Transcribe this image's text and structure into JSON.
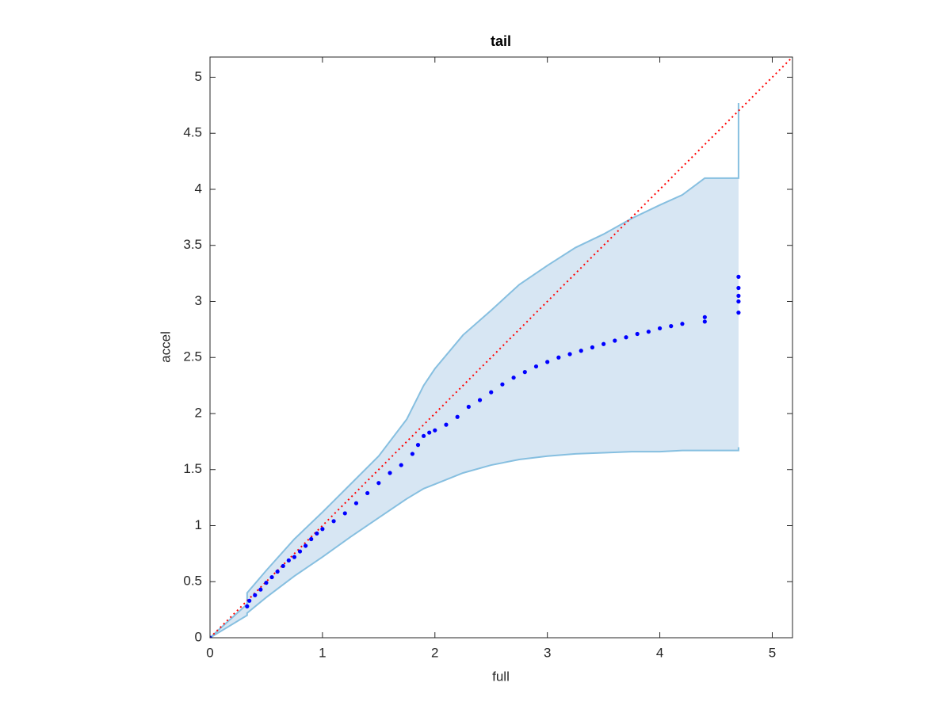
{
  "chart_data": {
    "type": "scatter",
    "title": "tail",
    "x_label": "full",
    "y_label": "accel",
    "xlim": [
      0,
      5.18
    ],
    "ylim": [
      0,
      5.18
    ],
    "xticks": [
      0,
      1,
      2,
      3,
      4,
      5
    ],
    "yticks": [
      0,
      0.5,
      1,
      1.5,
      2,
      2.5,
      3,
      3.5,
      4,
      4.5,
      5
    ],
    "series": [
      {
        "color": "#0000ff",
        "x": [
          0,
          0.33,
          0.35,
          0.4,
          0.45,
          0.5,
          0.55,
          0.6,
          0.65,
          0.7,
          0.75,
          0.8,
          0.85,
          0.9,
          0.95,
          1.0,
          1.1,
          1.2,
          1.3,
          1.4,
          1.5,
          1.6,
          1.7,
          1.8,
          1.85,
          1.9,
          1.95,
          2.0,
          2.1,
          2.2,
          2.3,
          2.4,
          2.5,
          2.6,
          2.7,
          2.8,
          2.9,
          3.0,
          3.1,
          3.2,
          3.3,
          3.4,
          3.5,
          3.6,
          3.7,
          3.8,
          3.9,
          4.0,
          4.1,
          4.2,
          4.4,
          4.4,
          4.7,
          4.7,
          4.7,
          4.7,
          4.7
        ],
        "values": [
          0,
          0.28,
          0.33,
          0.38,
          0.43,
          0.49,
          0.54,
          0.59,
          0.64,
          0.69,
          0.72,
          0.77,
          0.82,
          0.88,
          0.93,
          0.97,
          1.04,
          1.11,
          1.2,
          1.29,
          1.38,
          1.47,
          1.54,
          1.64,
          1.72,
          1.8,
          1.83,
          1.85,
          1.9,
          1.97,
          2.06,
          2.12,
          2.19,
          2.26,
          2.32,
          2.37,
          2.42,
          2.46,
          2.5,
          2.53,
          2.56,
          2.59,
          2.62,
          2.65,
          2.68,
          2.71,
          2.73,
          2.76,
          2.78,
          2.8,
          2.82,
          2.86,
          2.9,
          3.0,
          3.05,
          3.12,
          3.22
        ]
      }
    ],
    "band": {
      "fill": "#d7e6f3",
      "color": "#86bfe0",
      "x": [
        0,
        0.33,
        0.33,
        0.5,
        0.75,
        1.0,
        1.25,
        1.5,
        1.75,
        1.9,
        2.0,
        2.25,
        2.5,
        2.75,
        3.0,
        3.25,
        3.5,
        3.75,
        4.0,
        4.2,
        4.4,
        4.7,
        4.7
      ],
      "upper": [
        0,
        0.3,
        0.4,
        0.6,
        0.88,
        1.12,
        1.37,
        1.62,
        1.95,
        2.25,
        2.4,
        2.7,
        2.92,
        3.15,
        3.32,
        3.48,
        3.6,
        3.74,
        3.86,
        3.95,
        4.1,
        4.1,
        4.77
      ],
      "lower": [
        0,
        0.2,
        0.22,
        0.36,
        0.55,
        0.72,
        0.9,
        1.07,
        1.24,
        1.33,
        1.37,
        1.47,
        1.54,
        1.59,
        1.62,
        1.64,
        1.65,
        1.66,
        1.66,
        1.67,
        1.67,
        1.67,
        1.7
      ]
    },
    "reference": {
      "color": "#ff0000",
      "x": [
        0,
        5.18
      ],
      "y": [
        0,
        5.18
      ]
    }
  }
}
